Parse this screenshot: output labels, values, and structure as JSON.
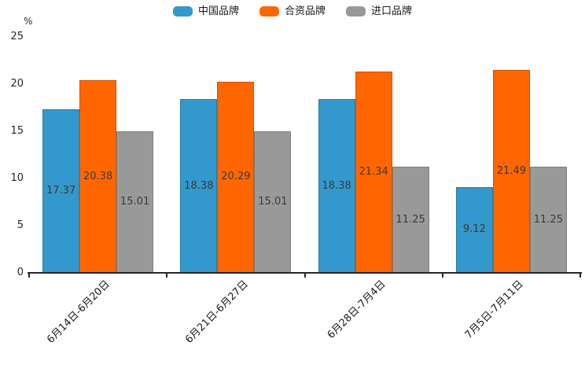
{
  "chart_data": {
    "type": "bar",
    "title": "",
    "unit_label": "%",
    "categories": [
      "6月14日-6月20日",
      "6月21日-6月27日",
      "6月28日-7月4日",
      "7月5日-7月11日"
    ],
    "series": [
      {
        "name": "中国品牌",
        "color": "#3398cc",
        "values": [
          17.37,
          18.38,
          18.38,
          9.12
        ]
      },
      {
        "name": "合资品牌",
        "color": "#ff6600",
        "values": [
          20.38,
          20.29,
          21.34,
          21.49
        ]
      },
      {
        "name": "进口品牌",
        "color": "#999999",
        "values": [
          15.01,
          15.01,
          11.25,
          11.25
        ]
      }
    ],
    "value_labels": [
      "17.37",
      "20.38",
      "15.01",
      "18.38",
      "20.29",
      "15.01",
      "18.38",
      "21.34",
      "11.25",
      "9.12",
      "21.49",
      "11.25"
    ],
    "xlabel": "",
    "ylabel": "%",
    "ylim": [
      0,
      25
    ],
    "yticks": [
      0,
      5,
      10,
      15,
      20,
      25
    ],
    "grid": false,
    "legend_position": "top-center",
    "value_label_position": "inside-center"
  }
}
